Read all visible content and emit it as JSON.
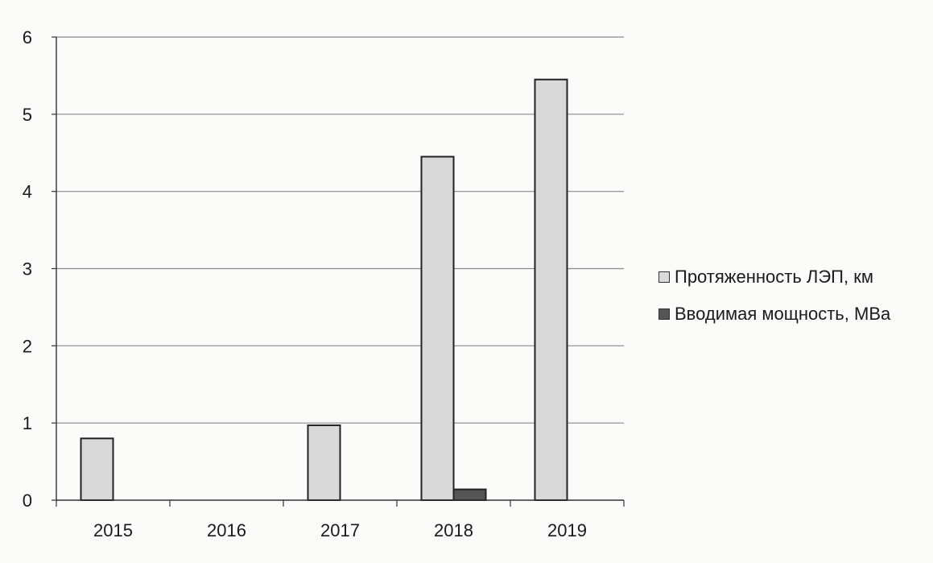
{
  "chart_data": {
    "type": "bar",
    "categories": [
      "2015",
      "2016",
      "2017",
      "2018",
      "2019"
    ],
    "series": [
      {
        "name": "Протяженность ЛЭП, км",
        "values": [
          0.8,
          0,
          0.97,
          4.45,
          5.45
        ],
        "color": "#d9d9d9"
      },
      {
        "name": "Вводимая мощность, МВа",
        "values": [
          0,
          0,
          0,
          0.14,
          0
        ],
        "color": "#555555"
      }
    ],
    "ylim": [
      0,
      6
    ],
    "yticks": [
      "0",
      "1",
      "2",
      "3",
      "4",
      "5",
      "6"
    ],
    "grid": true,
    "legend_position": "right",
    "title": "",
    "xlabel": "",
    "ylabel": ""
  }
}
